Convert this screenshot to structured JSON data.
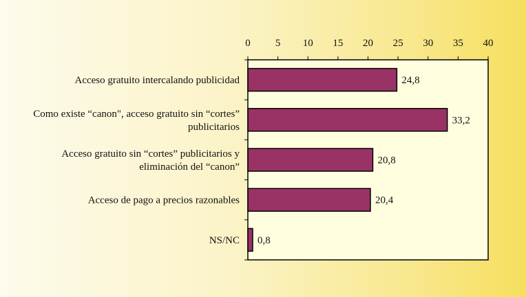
{
  "chart_data": {
    "type": "bar",
    "orientation": "horizontal",
    "categories": [
      "Acceso gratuito intercalando publicidad",
      "Como existe “canon\", acceso gratuito sin “cortes” publicitarios",
      "Acceso gratuito sin “cortes” publicitarios y eliminación del “canon”",
      "Acceso de pago a precios razonables",
      "NS/NC"
    ],
    "category_lines": [
      [
        "Acceso gratuito intercalando publicidad"
      ],
      [
        "Como existe “canon\", acceso gratuito sin “cortes”",
        "publicitarios"
      ],
      [
        "Acceso gratuito sin “cortes” publicitarios y",
        "eliminación del “canon”"
      ],
      [
        "Acceso de pago a precios razonables"
      ],
      [
        "NS/NC"
      ]
    ],
    "values": [
      24.8,
      33.2,
      20.8,
      20.4,
      0.8
    ],
    "data_labels": [
      "24,8",
      "33,2",
      "20,8",
      "20,4",
      "0,8"
    ],
    "xlim": [
      0,
      40
    ],
    "xticks": [
      0,
      5,
      10,
      15,
      20,
      25,
      30,
      35,
      40
    ],
    "xaxis_position": "top",
    "grid": false,
    "legend": "none",
    "title": "",
    "xlabel": "",
    "ylabel": "",
    "colors": {
      "bar": "#993366",
      "bar_edge": "#000000",
      "plot_bg": "#ffffe0",
      "axis": "#000000"
    }
  }
}
